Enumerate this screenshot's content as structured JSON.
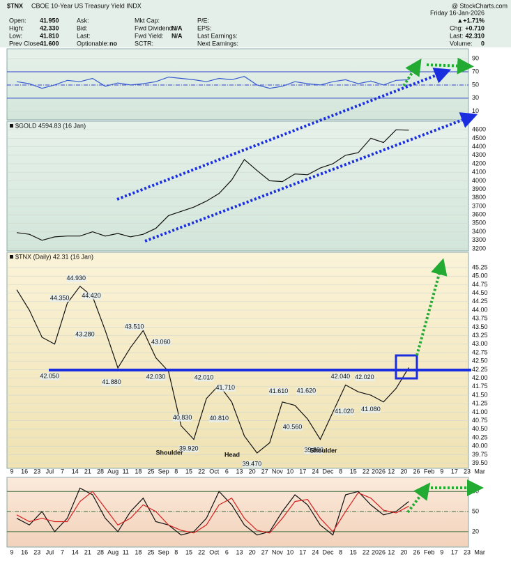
{
  "header": {
    "symbol": "$TNX",
    "name": "CBOE 10-Year US Treasury Yield INDX",
    "credit": "@ StockCharts.com",
    "quote_columns": [
      [
        {
          "label": "Open:",
          "value": "41.950"
        },
        {
          "label": "High:",
          "value": "42.330"
        },
        {
          "label": "Low:",
          "value": "41.810"
        },
        {
          "label": "Prev Close:",
          "value": "41.600"
        }
      ],
      [
        {
          "label": "Ask:"
        },
        {
          "label": "Bid:"
        },
        {
          "label": "Last:"
        },
        {
          "label": "Optionable:",
          "value": "no"
        }
      ],
      [
        {
          "label": "Mkt Cap:"
        },
        {
          "label": "Fwd Dividend:",
          "value": "N/A"
        },
        {
          "label": "Fwd Yield:",
          "value": "N/A"
        },
        {
          "label": "SCTR:"
        }
      ],
      [
        {
          "label": "P/E:"
        },
        {
          "label": "EPS:"
        },
        {
          "label": "Last Earnings:"
        },
        {
          "label": "Next Earnings:"
        }
      ]
    ],
    "date": "Friday 16-Jan-2026",
    "change_pct": "▲+1.71%",
    "summary": [
      {
        "label": "Chg:",
        "value": "+0.710"
      },
      {
        "label": "Last:",
        "value": "42.310"
      },
      {
        "label": "Volume:",
        "value": "0"
      }
    ]
  },
  "x_axis_labels": [
    "9",
    "16",
    "23",
    "Jul",
    "7",
    "14",
    "21",
    "28",
    "Aug",
    "11",
    "18",
    "25",
    "Sep",
    "8",
    "15",
    "22",
    "Oct",
    "6",
    "13",
    "20",
    "27",
    "Nov",
    "10",
    "17",
    "24",
    "Dec",
    "8",
    "15",
    "22",
    "2026",
    "12",
    "20",
    "26",
    "Feb",
    "9",
    "17",
    "23",
    "Mar"
  ],
  "chart_data": [
    {
      "type": "line",
      "xlim": [
        -0.77,
        35.72
      ],
      "ylim": [
        -3,
        105
      ],
      "yticks": [
        10,
        30,
        50,
        70,
        90
      ],
      "reference_lines": [
        30,
        50,
        70
      ],
      "x": [
        0,
        1,
        2,
        3,
        4,
        5,
        6,
        7,
        8,
        9,
        10,
        11,
        12,
        13,
        14,
        15,
        16,
        17,
        18,
        19,
        20,
        21,
        22,
        23,
        24,
        25,
        26,
        27,
        28,
        29,
        30,
        31
      ],
      "series": [
        {
          "color": "#3a5bd0",
          "values": [
            55,
            52,
            45,
            50,
            57,
            55,
            60,
            48,
            53,
            50,
            52,
            55,
            62,
            60,
            58,
            55,
            60,
            58,
            63,
            50,
            45,
            48,
            55,
            52,
            50,
            55,
            58,
            52,
            56,
            50,
            57,
            58
          ]
        }
      ]
    },
    {
      "type": "line",
      "title": "$GOLD 4594.83 (16 Jan)",
      "xlim": [
        -0.77,
        35.72
      ],
      "ylim": [
        3175,
        4700
      ],
      "yticks": [
        3200,
        3300,
        3400,
        3500,
        3600,
        3700,
        3800,
        3900,
        4000,
        4100,
        4200,
        4300,
        4400,
        4500,
        4600
      ],
      "x": [
        0,
        1,
        2,
        3,
        4,
        5,
        6,
        7,
        8,
        9,
        10,
        11,
        12,
        13,
        14,
        15,
        16,
        17,
        18,
        19,
        20,
        21,
        22,
        23,
        24,
        25,
        26,
        27,
        28,
        29,
        30,
        31
      ],
      "series": [
        {
          "color": "#111111",
          "values": [
            3390,
            3370,
            3300,
            3340,
            3350,
            3350,
            3400,
            3350,
            3380,
            3340,
            3370,
            3440,
            3590,
            3640,
            3690,
            3760,
            3850,
            4010,
            4250,
            4120,
            4000,
            3990,
            4080,
            4070,
            4150,
            4200,
            4300,
            4330,
            4500,
            4450,
            4600,
            4594.83
          ]
        }
      ]
    },
    {
      "type": "line",
      "title": "$TNX (Daily) 42.31 (16 Jan)",
      "xlim": [
        -0.77,
        35.72
      ],
      "ylim": [
        39.35,
        45.7
      ],
      "yticks": [
        {
          "value": 39.5,
          "label": "39.50"
        },
        39.75,
        {
          "value": 40,
          "label": "40.00"
        },
        40.25,
        {
          "value": 40.5,
          "label": "40.50"
        },
        40.75,
        {
          "value": 41,
          "label": "41.00"
        },
        41.25,
        {
          "value": 41.5,
          "label": "41.50"
        },
        41.75,
        {
          "value": 42,
          "label": "42.00"
        },
        42.25,
        {
          "value": 42.5,
          "label": "42.50"
        },
        42.75,
        {
          "value": 43,
          "label": "43.00"
        },
        43.25,
        {
          "value": 43.5,
          "label": "43.50"
        },
        43.75,
        {
          "value": 44,
          "label": "44.00"
        },
        44.25,
        {
          "value": 44.5,
          "label": "44.50"
        },
        44.75,
        {
          "value": 45,
          "label": "45.00"
        },
        45.25
      ],
      "x": [
        0,
        1,
        2,
        3,
        4,
        5,
        6,
        7,
        8,
        9,
        10,
        11,
        12,
        13,
        14,
        15,
        16,
        17,
        18,
        19,
        20,
        21,
        22,
        23,
        24,
        25,
        26,
        27,
        28,
        29,
        30,
        31
      ],
      "series": [
        {
          "color": "#111111",
          "values": [
            44.6,
            44.0,
            43.2,
            43.0,
            44.2,
            44.7,
            44.4,
            43.4,
            42.3,
            42.9,
            43.4,
            42.6,
            42.2,
            40.6,
            40.2,
            41.4,
            41.8,
            41.3,
            40.3,
            39.8,
            40.1,
            41.3,
            41.2,
            40.8,
            40.2,
            41.0,
            41.8,
            41.6,
            41.5,
            41.3,
            41.7,
            42.31
          ]
        }
      ],
      "annotations": [
        {
          "x": 4.7,
          "value": 44.93,
          "label": "44.930"
        },
        {
          "x": 3.4,
          "value": 44.35,
          "label": "44.350"
        },
        {
          "x": 5.9,
          "value": 44.42,
          "label": "44.420"
        },
        {
          "x": 5.4,
          "value": 43.28,
          "label": "43.280"
        },
        {
          "x": 2.6,
          "value": 42.05,
          "label": "42.050"
        },
        {
          "x": 9.3,
          "value": 43.51,
          "label": "43.510"
        },
        {
          "x": 11.4,
          "value": 43.06,
          "label": "43.060"
        },
        {
          "x": 7.5,
          "value": 41.88,
          "label": "41.880"
        },
        {
          "x": 11.0,
          "value": 42.03,
          "label": "42.030"
        },
        {
          "x": 14.8,
          "value": 42.01,
          "label": "42.010"
        },
        {
          "x": 16.5,
          "value": 41.71,
          "label": "41.710"
        },
        {
          "x": 13.1,
          "value": 40.83,
          "label": "40.830"
        },
        {
          "x": 16.0,
          "value": 40.81,
          "label": "40.810"
        },
        {
          "x": 13.6,
          "value": 39.92,
          "label": "39.920"
        },
        {
          "x": 18.6,
          "value": 39.47,
          "label": "39.470"
        },
        {
          "x": 20.7,
          "value": 41.61,
          "label": "41.610"
        },
        {
          "x": 22.9,
          "value": 41.62,
          "label": "41.620"
        },
        {
          "x": 21.8,
          "value": 40.56,
          "label": "40.560"
        },
        {
          "x": 23.5,
          "value": 39.88,
          "label": "39.880"
        },
        {
          "x": 25.6,
          "value": 42.04,
          "label": "42.040"
        },
        {
          "x": 27.5,
          "value": 42.02,
          "label": "42.020"
        },
        {
          "x": 25.9,
          "value": 41.02,
          "label": "41.020"
        },
        {
          "x": 28.0,
          "value": 41.08,
          "label": "41.080"
        }
      ],
      "pattern_labels": [
        "Shoulder",
        "Head",
        "Shoulder"
      ]
    },
    {
      "type": "line",
      "xlim": [
        -0.77,
        35.72
      ],
      "ylim": [
        -3,
        101
      ],
      "yticks": [
        20,
        50,
        80
      ],
      "reference_lines": [
        20,
        50,
        80
      ],
      "x": [
        0,
        1,
        2,
        3,
        4,
        5,
        6,
        7,
        8,
        9,
        10,
        11,
        12,
        13,
        14,
        15,
        16,
        17,
        18,
        19,
        20,
        21,
        22,
        23,
        24,
        25,
        26,
        27,
        28,
        29,
        30,
        31
      ],
      "series": [
        {
          "color": "#111111",
          "values": [
            40,
            30,
            50,
            20,
            40,
            85,
            75,
            40,
            20,
            50,
            70,
            35,
            30,
            15,
            20,
            40,
            80,
            60,
            30,
            15,
            20,
            50,
            75,
            60,
            30,
            15,
            75,
            80,
            60,
            45,
            50,
            65
          ]
        },
        {
          "color": "#d42020",
          "values": [
            45,
            35,
            40,
            35,
            35,
            65,
            80,
            55,
            30,
            40,
            60,
            50,
            30,
            22,
            18,
            30,
            60,
            70,
            40,
            22,
            18,
            40,
            65,
            68,
            40,
            20,
            50,
            78,
            70,
            52,
            48,
            58
          ]
        }
      ]
    }
  ]
}
